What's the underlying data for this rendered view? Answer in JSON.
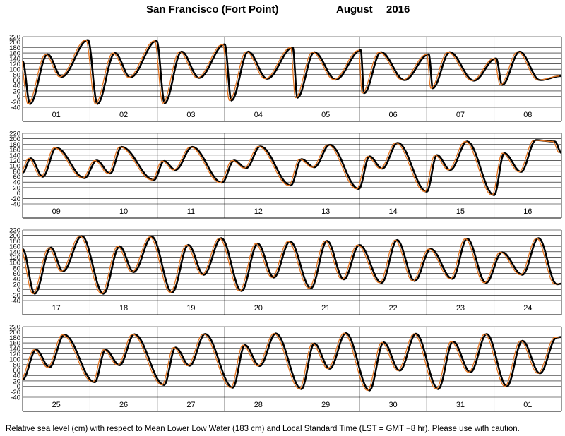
{
  "title": {
    "station": "San Francisco (Fort Point)",
    "month": "August",
    "year": "2016"
  },
  "footer": "Relative sea level (cm) with respect to Mean Lower Low Water (183 cm) and Local Standard Time (LST = GMT −8 hr). Please use with caution.",
  "colors": {
    "observed": "#000000",
    "predicted": "#e87722",
    "grid": "#000000"
  },
  "chart_data": [
    {
      "type": "line",
      "panel": 1,
      "categories": [
        "01",
        "02",
        "03",
        "04",
        "05",
        "06",
        "07",
        "08"
      ],
      "ylim": [
        -40,
        220
      ],
      "yticks": [
        -40,
        -20,
        0,
        20,
        40,
        60,
        80,
        100,
        120,
        140,
        160,
        180,
        200,
        220
      ],
      "grid": true,
      "series": [
        {
          "x": [
            0,
            0.11,
            0.37,
            0.58,
            0.97,
            1.11,
            1.37,
            1.6,
            1.99,
            2.11,
            2.36,
            2.62,
            3.0,
            3.1,
            3.35,
            3.63,
            4.01,
            4.08,
            4.33,
            4.65,
            5.02,
            5.07,
            5.32,
            5.67,
            6.03,
            6.09,
            6.34,
            6.7,
            7.03,
            7.12,
            7.38,
            7.68,
            8.0
          ],
          "y": [
            130,
            -28,
            155,
            72,
            208,
            -28,
            160,
            70,
            205,
            -25,
            165,
            68,
            192,
            -15,
            165,
            65,
            180,
            -5,
            163,
            62,
            170,
            12,
            163,
            60,
            155,
            30,
            163,
            58,
            140,
            42,
            165,
            60,
            75
          ]
        }
      ]
    },
    {
      "type": "line",
      "panel": 2,
      "categories": [
        "09",
        "10",
        "11",
        "12",
        "13",
        "14",
        "15",
        "16"
      ],
      "ylim": [
        -40,
        220
      ],
      "yticks": [
        -40,
        -20,
        0,
        20,
        40,
        60,
        80,
        100,
        120,
        140,
        160,
        180,
        200,
        220
      ],
      "grid": true,
      "series": [
        {
          "x": [
            0,
            0.12,
            0.3,
            0.5,
            0.92,
            1.1,
            1.3,
            1.47,
            1.95,
            2.1,
            2.27,
            2.52,
            2.96,
            3.14,
            3.32,
            3.53,
            3.98,
            4.14,
            4.33,
            4.56,
            4.99,
            5.15,
            5.34,
            5.57,
            6.0,
            6.15,
            6.35,
            6.6,
            7.0,
            7.15,
            7.4,
            7.62,
            7.9,
            8.0
          ],
          "y": [
            75,
            128,
            60,
            167,
            55,
            120,
            72,
            170,
            48,
            118,
            85,
            170,
            38,
            120,
            92,
            172,
            28,
            125,
            95,
            178,
            15,
            135,
            90,
            185,
            5,
            140,
            85,
            190,
            -8,
            147,
            78,
            195,
            190,
            148
          ]
        }
      ]
    },
    {
      "type": "line",
      "panel": 3,
      "categories": [
        "17",
        "18",
        "19",
        "20",
        "21",
        "22",
        "23",
        "24"
      ],
      "ylim": [
        -40,
        220
      ],
      "yticks": [
        -40,
        -20,
        0,
        20,
        40,
        60,
        80,
        100,
        120,
        140,
        160,
        180,
        200,
        220
      ],
      "grid": true,
      "series": [
        {
          "x": [
            0,
            0.18,
            0.42,
            0.6,
            0.88,
            1.2,
            1.44,
            1.65,
            1.92,
            2.22,
            2.46,
            2.69,
            2.95,
            3.25,
            3.49,
            3.73,
            3.97,
            4.28,
            4.52,
            4.77,
            5.0,
            5.33,
            5.56,
            5.82,
            6.06,
            6.38,
            6.6,
            6.88,
            7.12,
            7.42,
            7.66,
            7.93,
            8.0
          ],
          "y": [
            150,
            -15,
            155,
            68,
            198,
            -15,
            160,
            65,
            195,
            -10,
            165,
            55,
            190,
            -5,
            170,
            45,
            178,
            5,
            180,
            38,
            165,
            25,
            183,
            32,
            150,
            40,
            188,
            25,
            138,
            55,
            190,
            20,
            22
          ]
        }
      ]
    },
    {
      "type": "line",
      "panel": 4,
      "categories": [
        "25",
        "26",
        "27",
        "28",
        "29",
        "30",
        "31",
        "01"
      ],
      "ylim": [
        -40,
        220
      ],
      "yticks": [
        -40,
        -20,
        0,
        20,
        40,
        60,
        80,
        100,
        120,
        140,
        160,
        180,
        200,
        220
      ],
      "grid": true,
      "series": [
        {
          "x": [
            0,
            0.2,
            0.4,
            0.62,
            1.07,
            1.23,
            1.44,
            1.66,
            2.1,
            2.27,
            2.48,
            2.71,
            3.12,
            3.3,
            3.52,
            3.76,
            4.14,
            4.33,
            4.56,
            4.8,
            5.15,
            5.36,
            5.6,
            5.84,
            6.17,
            6.39,
            6.65,
            6.89,
            7.19,
            7.42,
            7.68,
            7.93,
            8.0
          ],
          "y": [
            25,
            135,
            70,
            190,
            15,
            135,
            78,
            192,
            5,
            143,
            76,
            193,
            -5,
            152,
            75,
            195,
            -10,
            158,
            65,
            196,
            -15,
            162,
            58,
            194,
            -10,
            165,
            52,
            193,
            0,
            168,
            48,
            180,
            182
          ]
        }
      ]
    }
  ]
}
